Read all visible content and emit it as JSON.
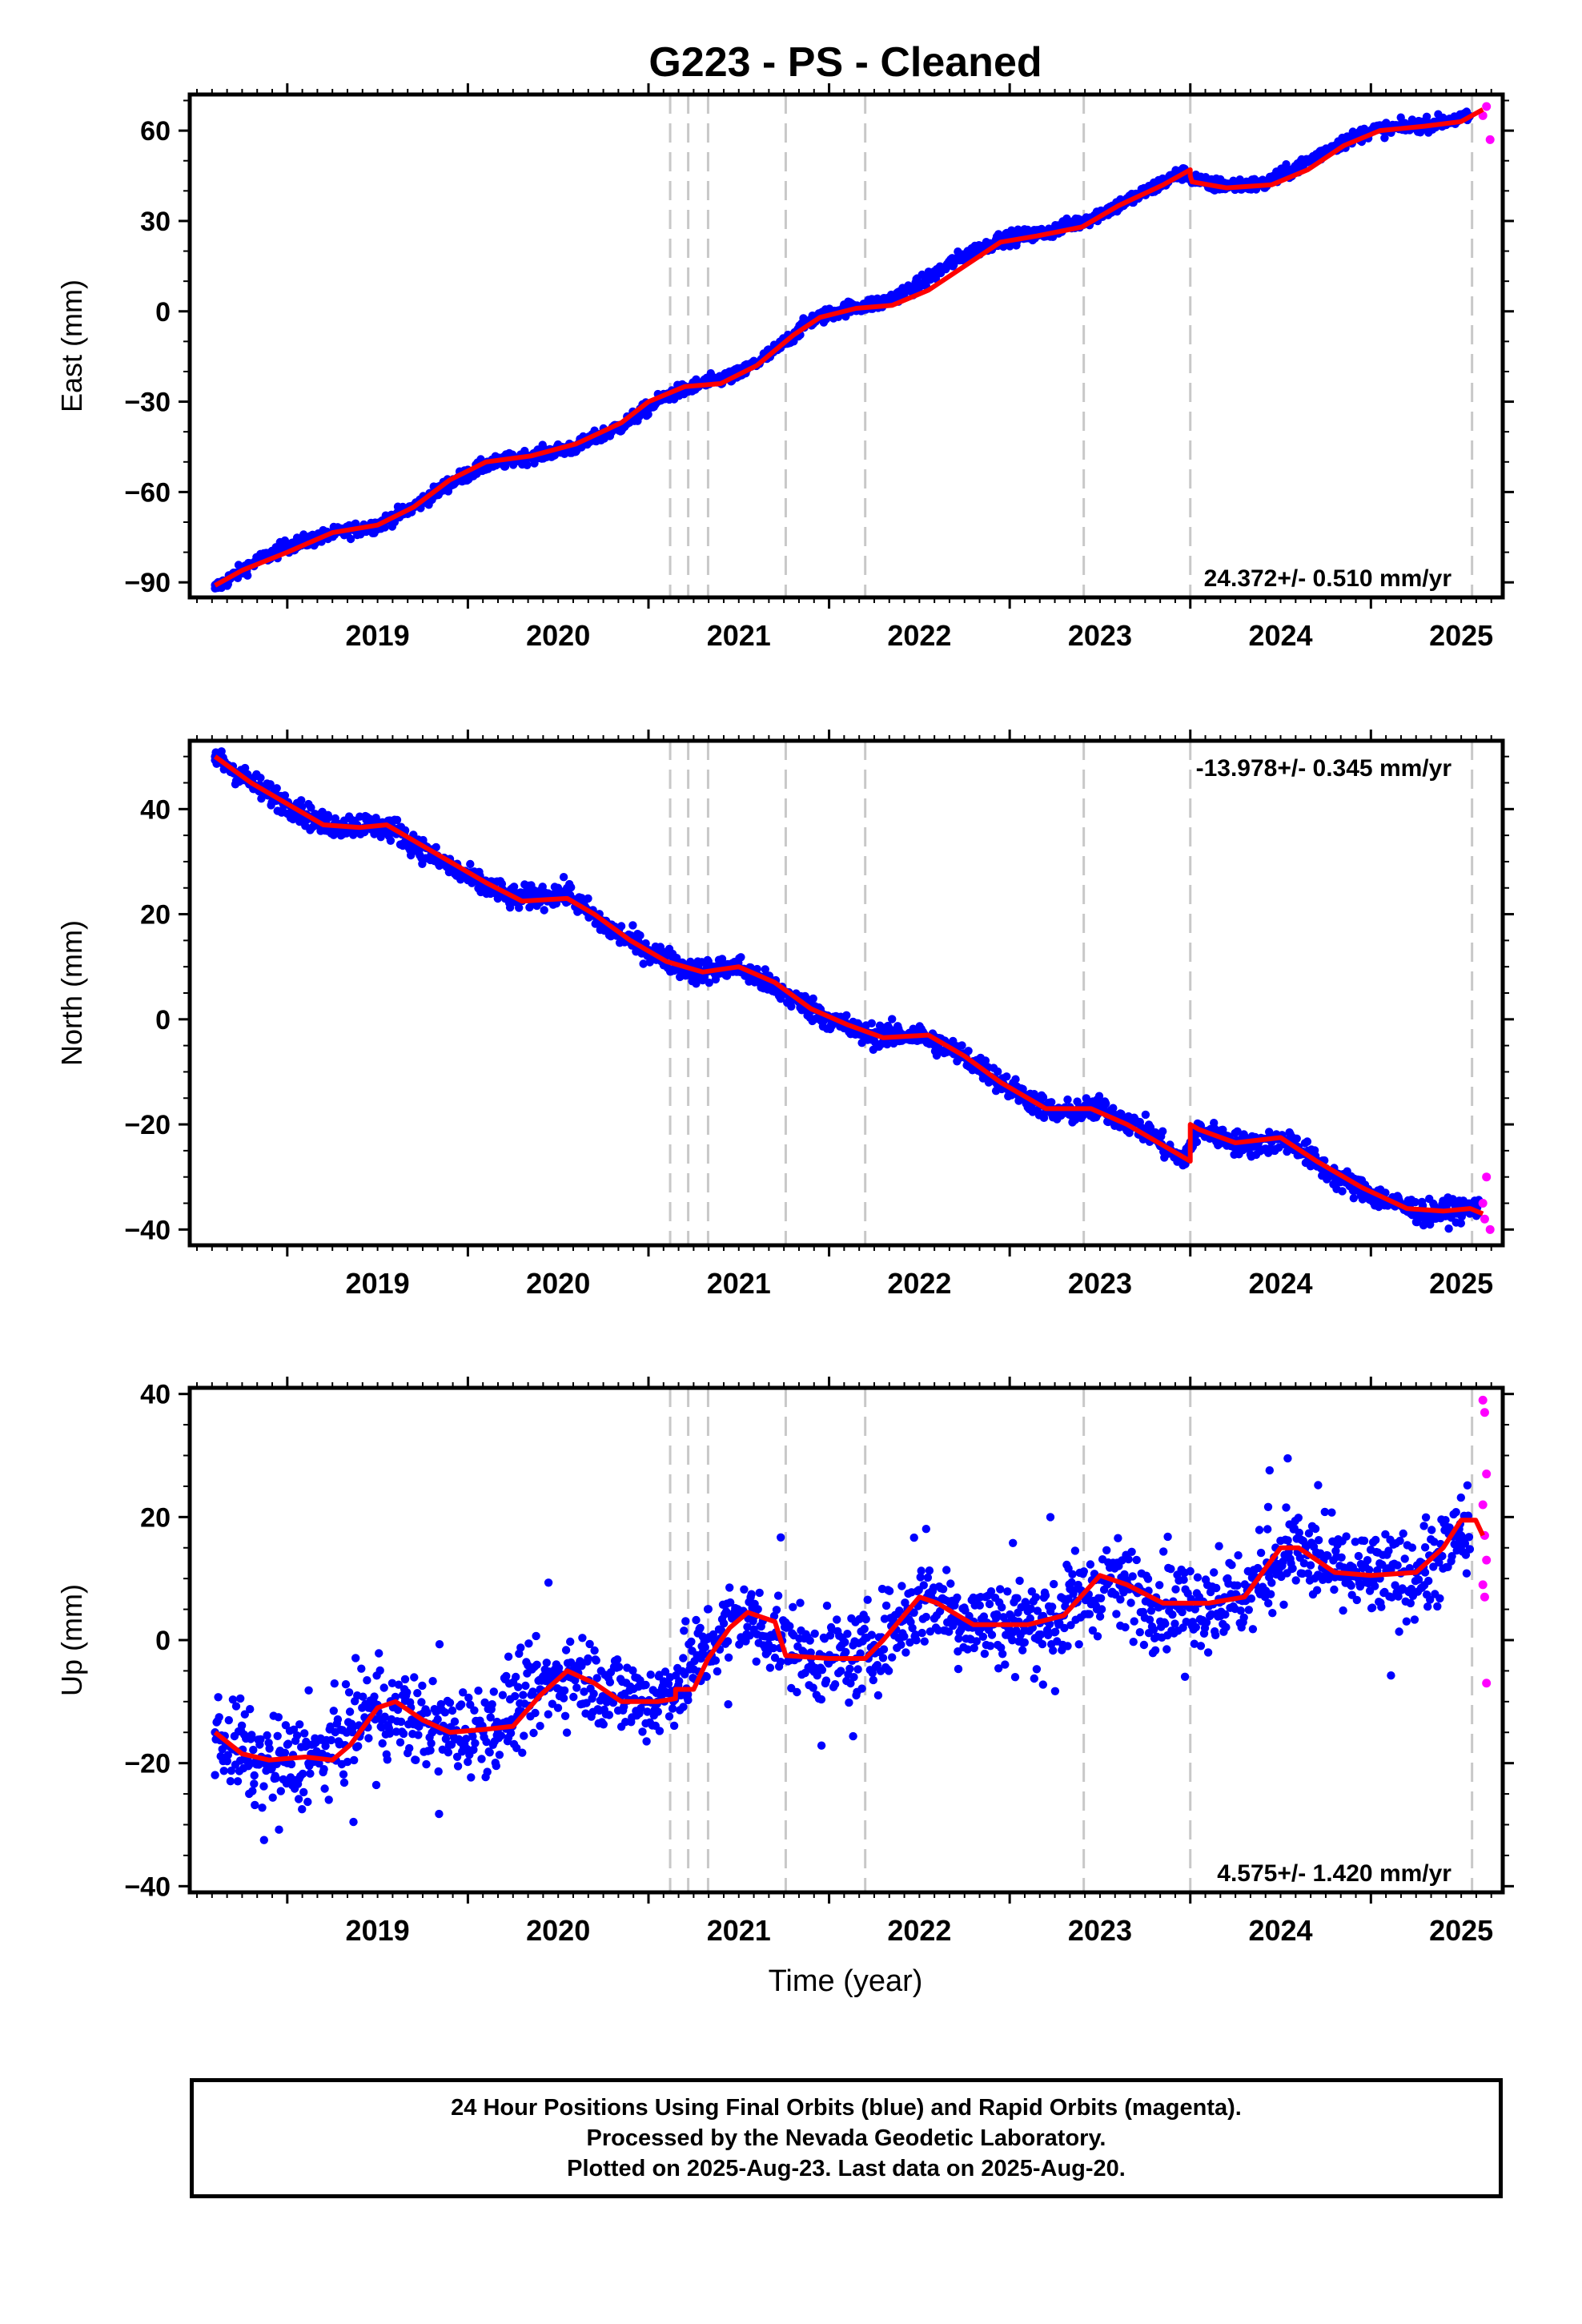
{
  "title": "G223  - PS - Cleaned",
  "xlabel": "Time (year)",
  "x_tick_labels": [
    "2019",
    "2020",
    "2021",
    "2022",
    "2023",
    "2024",
    "2025"
  ],
  "colors": {
    "final_orbits": "#0000ff",
    "rapid_orbits": "#ff00ff",
    "model": "#ff0000",
    "events": "#c8c8c8"
  },
  "caption": {
    "line1": "24 Hour Positions Using Final Orbits (blue) and Rapid Orbits (magenta).",
    "line2": "Processed by the Nevada Geodetic Laboratory.",
    "line3": "Plotted on 2025-Aug-23. Last data on 2025-Aug-20."
  },
  "chart_data": [
    {
      "type": "scatter",
      "ylabel": "East (mm)",
      "y_ticks": [
        -90,
        -60,
        -30,
        0,
        30,
        60
      ],
      "ylim": [
        -95,
        72
      ],
      "xlim": [
        2018.46,
        2025.73
      ],
      "rate_text": "24.372+/- 0.510 mm/yr",
      "rate_position": "bottom-right",
      "event_lines": [
        2021.12,
        2021.22,
        2021.33,
        2021.76,
        2022.2,
        2023.41,
        2024.0,
        2025.56
      ],
      "series": [
        {
          "name": "Final Orbits (blue)",
          "points": [
            [
              2018.6,
              -92
            ],
            [
              2018.8,
              -84
            ],
            [
              2019.0,
              -78
            ],
            [
              2019.25,
              -74
            ],
            [
              2019.5,
              -71
            ],
            [
              2019.7,
              -65
            ],
            [
              2019.9,
              -57
            ],
            [
              2020.1,
              -51
            ],
            [
              2020.35,
              -48
            ],
            [
              2020.6,
              -45
            ],
            [
              2020.85,
              -38
            ],
            [
              2021.1,
              -28
            ],
            [
              2021.3,
              -24
            ],
            [
              2021.5,
              -21
            ],
            [
              2021.7,
              -13
            ],
            [
              2021.9,
              -3
            ],
            [
              2022.1,
              1
            ],
            [
              2022.3,
              3
            ],
            [
              2022.5,
              9
            ],
            [
              2022.7,
              17
            ],
            [
              2022.95,
              24
            ],
            [
              2023.2,
              26
            ],
            [
              2023.45,
              31
            ],
            [
              2023.7,
              38
            ],
            [
              2023.95,
              46
            ],
            [
              2024.1,
              42
            ],
            [
              2024.4,
              42
            ],
            [
              2024.6,
              48
            ],
            [
              2024.8,
              55
            ],
            [
              2025.0,
              60
            ],
            [
              2025.3,
              62
            ],
            [
              2025.5,
              64
            ]
          ]
        },
        {
          "name": "Rapid Orbits (magenta)",
          "points": [
            [
              2025.62,
              65
            ],
            [
              2025.64,
              68
            ],
            [
              2025.66,
              57
            ]
          ]
        },
        {
          "name": "model",
          "points": [
            [
              2018.6,
              -91
            ],
            [
              2018.75,
              -86
            ],
            [
              2019.0,
              -80
            ],
            [
              2019.25,
              -73.5
            ],
            [
              2019.5,
              -71
            ],
            [
              2019.7,
              -65
            ],
            [
              2019.9,
              -56
            ],
            [
              2020.1,
              -50
            ],
            [
              2020.35,
              -48
            ],
            [
              2020.6,
              -44
            ],
            [
              2020.85,
              -37
            ],
            [
              2021.0,
              -30
            ],
            [
              2021.2,
              -25
            ],
            [
              2021.4,
              -24
            ],
            [
              2021.6,
              -18
            ],
            [
              2021.8,
              -8
            ],
            [
              2021.95,
              -2
            ],
            [
              2022.15,
              1
            ],
            [
              2022.35,
              2
            ],
            [
              2022.55,
              7
            ],
            [
              2022.75,
              15
            ],
            [
              2022.95,
              23
            ],
            [
              2023.15,
              25
            ],
            [
              2023.4,
              28
            ],
            [
              2023.6,
              35
            ],
            [
              2023.85,
              42
            ],
            [
              2024.0,
              47
            ],
            [
              2024.0,
              45
            ],
            [
              2024.01,
              43
            ],
            [
              2024.2,
              41
            ],
            [
              2024.45,
              42
            ],
            [
              2024.65,
              47
            ],
            [
              2024.85,
              55
            ],
            [
              2025.05,
              60
            ],
            [
              2025.3,
              61.5
            ],
            [
              2025.5,
              63
            ],
            [
              2025.62,
              67
            ]
          ]
        }
      ]
    },
    {
      "type": "scatter",
      "ylabel": "North (mm)",
      "y_ticks": [
        -40,
        -20,
        0,
        20,
        40
      ],
      "ylim": [
        -43,
        53
      ],
      "xlim": [
        2018.46,
        2025.73
      ],
      "rate_text": "-13.978+/- 0.345 mm/yr",
      "rate_position": "top-right",
      "event_lines": [
        2021.12,
        2021.22,
        2021.33,
        2021.76,
        2022.2,
        2023.41,
        2024.0,
        2025.56
      ],
      "series": [
        {
          "name": "Final Orbits (blue)",
          "points": [
            [
              2018.6,
              50
            ],
            [
              2018.8,
              45
            ],
            [
              2019.0,
              41
            ],
            [
              2019.2,
              37
            ],
            [
              2019.45,
              37
            ],
            [
              2019.6,
              36
            ],
            [
              2019.8,
              31
            ],
            [
              2020.0,
              27
            ],
            [
              2020.25,
              23
            ],
            [
              2020.55,
              24
            ],
            [
              2020.75,
              18
            ],
            [
              2021.0,
              13
            ],
            [
              2021.25,
              9
            ],
            [
              2021.5,
              10
            ],
            [
              2021.75,
              5
            ],
            [
              2021.95,
              1
            ],
            [
              2022.2,
              -3
            ],
            [
              2022.5,
              -3
            ],
            [
              2022.75,
              -7
            ],
            [
              2023.0,
              -13
            ],
            [
              2023.25,
              -18
            ],
            [
              2023.5,
              -17
            ],
            [
              2023.75,
              -21
            ],
            [
              2023.95,
              -27
            ],
            [
              2024.05,
              -21
            ],
            [
              2024.3,
              -24
            ],
            [
              2024.55,
              -23
            ],
            [
              2024.8,
              -30
            ],
            [
              2025.05,
              -34
            ],
            [
              2025.3,
              -37
            ],
            [
              2025.55,
              -36
            ]
          ]
        },
        {
          "name": "Rapid Orbits (magenta)",
          "points": [
            [
              2025.62,
              -35
            ],
            [
              2025.64,
              -30
            ],
            [
              2025.66,
              -40
            ],
            [
              2025.63,
              -38
            ]
          ]
        },
        {
          "name": "model",
          "points": [
            [
              2018.6,
              50
            ],
            [
              2018.8,
              45
            ],
            [
              2019.0,
              41
            ],
            [
              2019.2,
              37
            ],
            [
              2019.4,
              36.5
            ],
            [
              2019.55,
              37
            ],
            [
              2019.7,
              34
            ],
            [
              2019.9,
              30
            ],
            [
              2020.1,
              26
            ],
            [
              2020.3,
              22.5
            ],
            [
              2020.55,
              23
            ],
            [
              2020.7,
              20
            ],
            [
              2020.9,
              15
            ],
            [
              2021.1,
              11
            ],
            [
              2021.3,
              9
            ],
            [
              2021.5,
              10
            ],
            [
              2021.7,
              7
            ],
            [
              2021.9,
              2
            ],
            [
              2022.1,
              -1
            ],
            [
              2022.3,
              -3.5
            ],
            [
              2022.55,
              -3
            ],
            [
              2022.75,
              -7
            ],
            [
              2022.95,
              -12
            ],
            [
              2023.2,
              -17
            ],
            [
              2023.45,
              -17
            ],
            [
              2023.65,
              -20
            ],
            [
              2023.85,
              -24
            ],
            [
              2024.0,
              -27
            ],
            [
              2024.0,
              -20
            ],
            [
              2024.05,
              -21
            ],
            [
              2024.25,
              -23.5
            ],
            [
              2024.5,
              -22.5
            ],
            [
              2024.7,
              -27
            ],
            [
              2024.95,
              -32
            ],
            [
              2025.2,
              -36
            ],
            [
              2025.4,
              -36.5
            ],
            [
              2025.55,
              -36
            ],
            [
              2025.62,
              -37
            ]
          ]
        }
      ]
    },
    {
      "type": "scatter",
      "ylabel": "Up (mm)",
      "y_ticks": [
        -40,
        -20,
        0,
        20,
        40
      ],
      "ylim": [
        -41,
        41
      ],
      "xlim": [
        2018.46,
        2025.73
      ],
      "rate_text": "4.575+/- 1.420 mm/yr",
      "rate_position": "bottom-right",
      "event_lines": [
        2021.12,
        2021.22,
        2021.33,
        2021.76,
        2022.2,
        2023.41,
        2024.0,
        2025.56
      ],
      "series": [
        {
          "name": "Final Orbits (blue)",
          "points": [
            [
              2018.6,
              -15
            ],
            [
              2018.8,
              -20
            ],
            [
              2019.0,
              -20
            ],
            [
              2019.2,
              -19
            ],
            [
              2019.45,
              -11
            ],
            [
              2019.7,
              -13
            ],
            [
              2019.9,
              -15
            ],
            [
              2020.15,
              -14
            ],
            [
              2020.4,
              -8
            ],
            [
              2020.6,
              -5
            ],
            [
              2020.85,
              -9
            ],
            [
              2021.05,
              -10
            ],
            [
              2021.3,
              -2
            ],
            [
              2021.5,
              4
            ],
            [
              2021.7,
              1
            ],
            [
              2021.9,
              -3
            ],
            [
              2022.15,
              -3
            ],
            [
              2022.4,
              3
            ],
            [
              2022.55,
              7
            ],
            [
              2022.8,
              3
            ],
            [
              2023.05,
              3
            ],
            [
              2023.3,
              4
            ],
            [
              2023.55,
              10
            ],
            [
              2023.8,
              6
            ],
            [
              2024.05,
              6
            ],
            [
              2024.3,
              7
            ],
            [
              2024.55,
              15
            ],
            [
              2024.8,
              11
            ],
            [
              2025.05,
              10
            ],
            [
              2025.3,
              11
            ],
            [
              2025.5,
              17
            ]
          ]
        },
        {
          "name": "Rapid Orbits (magenta)",
          "points": [
            [
              2025.62,
              39
            ],
            [
              2025.63,
              37
            ],
            [
              2025.64,
              27
            ],
            [
              2025.62,
              22
            ],
            [
              2025.63,
              17
            ],
            [
              2025.64,
              13
            ],
            [
              2025.62,
              9
            ],
            [
              2025.63,
              7
            ],
            [
              2025.64,
              -7
            ]
          ]
        },
        {
          "name": "model",
          "points": [
            [
              2018.6,
              -15
            ],
            [
              2018.75,
              -18.5
            ],
            [
              2018.9,
              -19.5
            ],
            [
              2019.1,
              -19
            ],
            [
              2019.25,
              -19.5
            ],
            [
              2019.35,
              -17
            ],
            [
              2019.5,
              -11
            ],
            [
              2019.6,
              -10
            ],
            [
              2019.75,
              -13
            ],
            [
              2019.9,
              -15
            ],
            [
              2020.1,
              -14.5
            ],
            [
              2020.25,
              -14
            ],
            [
              2020.4,
              -9
            ],
            [
              2020.55,
              -5
            ],
            [
              2020.7,
              -7
            ],
            [
              2020.85,
              -10
            ],
            [
              2021.05,
              -10
            ],
            [
              2021.15,
              -9.5
            ],
            [
              2021.15,
              -8
            ],
            [
              2021.25,
              -8
            ],
            [
              2021.33,
              -3
            ],
            [
              2021.45,
              2
            ],
            [
              2021.55,
              4.5
            ],
            [
              2021.7,
              3
            ],
            [
              2021.76,
              -2.5
            ],
            [
              2022.0,
              -3
            ],
            [
              2022.2,
              -3
            ],
            [
              2022.3,
              0
            ],
            [
              2022.5,
              7
            ],
            [
              2022.6,
              6
            ],
            [
              2022.8,
              2.5
            ],
            [
              2023.1,
              2.5
            ],
            [
              2023.3,
              4
            ],
            [
              2023.5,
              10.5
            ],
            [
              2023.65,
              9
            ],
            [
              2023.85,
              6
            ],
            [
              2024.1,
              6
            ],
            [
              2024.3,
              7
            ],
            [
              2024.5,
              15
            ],
            [
              2024.6,
              15
            ],
            [
              2024.8,
              11
            ],
            [
              2025.0,
              10.5
            ],
            [
              2025.25,
              11
            ],
            [
              2025.4,
              15
            ],
            [
              2025.5,
              19.5
            ],
            [
              2025.58,
              19.5
            ],
            [
              2025.62,
              17
            ]
          ]
        }
      ]
    }
  ]
}
